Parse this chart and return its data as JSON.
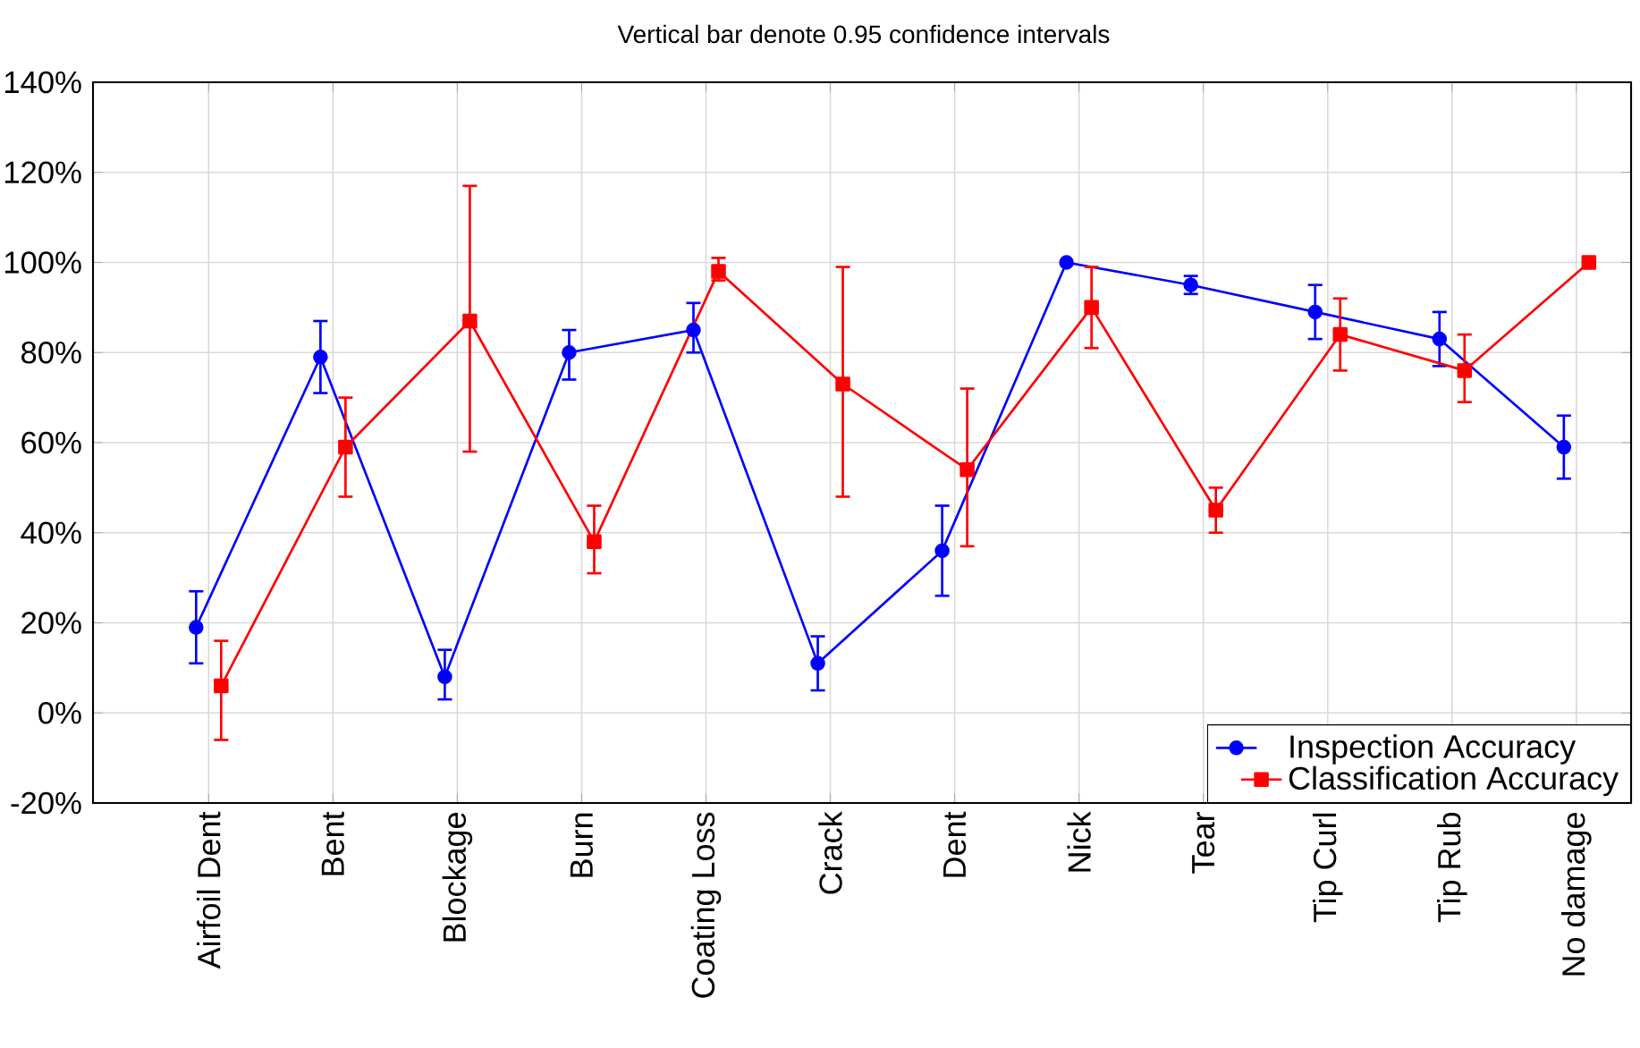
{
  "chart_data": {
    "type": "line",
    "title": "Vertical bar denote 0.95 confidence intervals",
    "categories": [
      "Airfoil Dent",
      "Bent",
      "Blockage",
      "Burn",
      "Coating Loss",
      "Crack",
      "Dent",
      "Nick",
      "Tear",
      "Tip Curl",
      "Tip Rub",
      "No damage"
    ],
    "series": [
      {
        "name": "Inspection Accuracy",
        "color": "#0000ff",
        "marker": "circle",
        "values": [
          19,
          79,
          8,
          80,
          85,
          11,
          36,
          100,
          95,
          89,
          83,
          59
        ],
        "errors": [
          [
            11,
            27
          ],
          [
            71,
            87
          ],
          [
            3,
            14
          ],
          [
            74,
            85
          ],
          [
            80,
            91
          ],
          [
            5,
            17
          ],
          [
            26,
            46
          ],
          null,
          [
            93,
            97
          ],
          [
            83,
            95
          ],
          [
            77,
            89
          ],
          [
            52,
            66
          ]
        ]
      },
      {
        "name": "Classification Accuracy",
        "color": "#ff0000",
        "marker": "square",
        "values": [
          6,
          59,
          87,
          38,
          98,
          73,
          54,
          90,
          45,
          84,
          76,
          100
        ],
        "errors": [
          [
            -6,
            16
          ],
          [
            48,
            70
          ],
          [
            58,
            117
          ],
          [
            31,
            46
          ],
          [
            96,
            101
          ],
          [
            48,
            99
          ],
          [
            37,
            72
          ],
          [
            81,
            99
          ],
          [
            40,
            50
          ],
          [
            76,
            92
          ],
          [
            69,
            84
          ],
          null
        ]
      }
    ],
    "ylim": [
      -20,
      140
    ],
    "yticks": [
      {
        "value": -20,
        "label": "-20%"
      },
      {
        "value": 0,
        "label": "0%"
      },
      {
        "value": 20,
        "label": "20%"
      },
      {
        "value": 40,
        "label": "40%"
      },
      {
        "value": 60,
        "label": "60%"
      },
      {
        "value": 80,
        "label": "80%"
      },
      {
        "value": 100,
        "label": "100%"
      },
      {
        "value": 120,
        "label": "120%"
      },
      {
        "value": 140,
        "label": "140%"
      }
    ],
    "grid": true,
    "legend": "bottom right",
    "line_style": "solid"
  }
}
